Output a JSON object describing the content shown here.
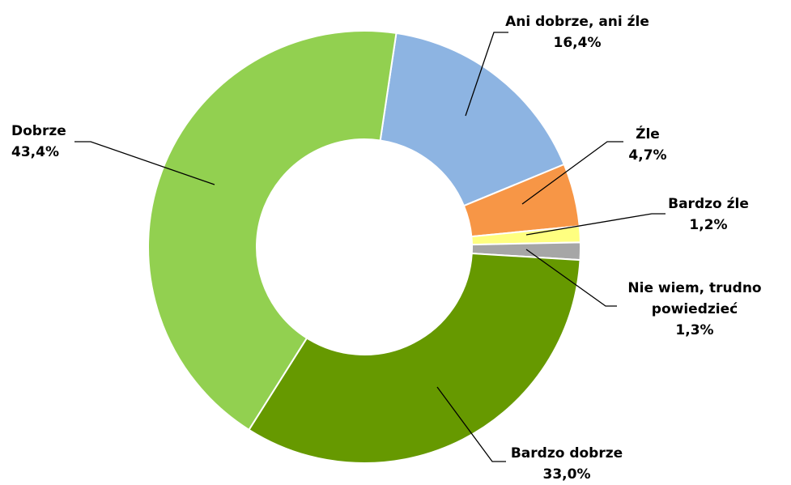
{
  "chart_data": {
    "type": "donut",
    "categories": [
      "Ani dobrze, ani źle",
      "Źle",
      "Bardzo źle",
      "Nie wiem, trudno powiedzieć",
      "Bardzo dobrze",
      "Dobrze"
    ],
    "values": [
      16.4,
      4.7,
      1.2,
      1.3,
      33.0,
      43.4
    ],
    "value_labels": [
      "16,4%",
      "4,7%",
      "1,2%",
      "1,3%",
      "33,0%",
      "43,4%"
    ],
    "colors": [
      "#8db4e2",
      "#f79646",
      "#ffff80",
      "#a6a6a6",
      "#669900",
      "#92d050"
    ]
  }
}
